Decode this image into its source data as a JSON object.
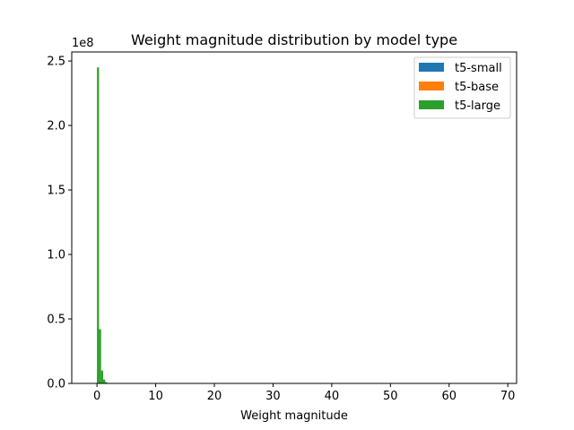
{
  "chart_data": {
    "type": "bar",
    "title": "Weight magnitude distribution by model type",
    "xlabel": "Weight magnitude",
    "ylabel": "",
    "y_offset_label": "1e8",
    "y_scale": 100000000,
    "xlim": [
      -4.3,
      71.5
    ],
    "ylim": [
      0,
      2.57
    ],
    "xticks": [
      0,
      10,
      20,
      30,
      40,
      50,
      60,
      70
    ],
    "yticks": [
      0.0,
      0.5,
      1.0,
      1.5,
      2.0,
      2.5
    ],
    "ytick_labels": [
      "0.0",
      "0.5",
      "1.0",
      "1.5",
      "2.0",
      "2.5"
    ],
    "grid": false,
    "legend_position": "top-right",
    "bin_edges": [
      0.0,
      0.35,
      0.7,
      1.05,
      1.4,
      1.75,
      2.1
    ],
    "series": [
      {
        "name": "t5-small",
        "color": "#1f77b4",
        "values": [
          0.03,
          0.005,
          0.001,
          0.0,
          0.0,
          0.0
        ]
      },
      {
        "name": "t5-base",
        "color": "#ff7f0e",
        "values": [
          0.11,
          0.02,
          0.004,
          0.001,
          0.0,
          0.0
        ]
      },
      {
        "name": "t5-large",
        "color": "#2ca02c",
        "values": [
          2.45,
          0.42,
          0.1,
          0.03,
          0.01,
          0.003
        ]
      }
    ]
  }
}
